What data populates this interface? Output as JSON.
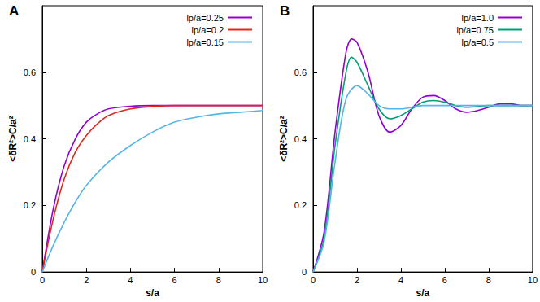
{
  "chart_data": [
    {
      "type": "line",
      "title": "A",
      "xlabel": "s/a",
      "ylabel": "<δR²>C/a²",
      "xlim": [
        0,
        10
      ],
      "xticks": [
        0,
        2,
        4,
        6,
        8,
        10
      ],
      "ylim": [
        0,
        0.8
      ],
      "yticks": [
        0,
        0.2,
        0.4,
        0.6
      ],
      "legend": "upper right",
      "grid": false,
      "series": [
        {
          "name": "lp/a=0.25",
          "color": "#9400d3",
          "x": [
            0,
            0.5,
            1,
            1.5,
            2,
            2.5,
            3,
            4,
            5,
            6,
            7,
            8,
            9,
            10
          ],
          "values": [
            0,
            0.19,
            0.32,
            0.4,
            0.45,
            0.475,
            0.49,
            0.498,
            0.5,
            0.5,
            0.5,
            0.5,
            0.5,
            0.5
          ]
        },
        {
          "name": "lp/a=0.2",
          "color": "#e3261b",
          "x": [
            0,
            0.5,
            1,
            1.5,
            2,
            2.5,
            3,
            4,
            5,
            6,
            7,
            8,
            9,
            10
          ],
          "values": [
            0,
            0.16,
            0.28,
            0.36,
            0.41,
            0.445,
            0.47,
            0.49,
            0.497,
            0.5,
            0.5,
            0.5,
            0.5,
            0.5
          ]
        },
        {
          "name": "lp/a=0.15",
          "color": "#56b4e9",
          "x": [
            0,
            0.5,
            1,
            1.5,
            2,
            3,
            4,
            5,
            6,
            7,
            8,
            9,
            10
          ],
          "values": [
            0,
            0.08,
            0.15,
            0.21,
            0.26,
            0.33,
            0.38,
            0.42,
            0.45,
            0.465,
            0.475,
            0.48,
            0.485
          ]
        }
      ]
    },
    {
      "type": "line",
      "title": "B",
      "xlabel": "s/a",
      "ylabel": "<δR²>C/a²",
      "xlim": [
        0,
        10
      ],
      "xticks": [
        0,
        2,
        4,
        6,
        8,
        10
      ],
      "ylim": [
        0,
        0.8
      ],
      "yticks": [
        0,
        0.2,
        0.4,
        0.6
      ],
      "legend": "upper right",
      "grid": false,
      "series": [
        {
          "name": "lp/a=1.0",
          "color": "#9400d3",
          "x": [
            0,
            0.5,
            1,
            1.5,
            1.75,
            2,
            2.5,
            3,
            3.5,
            4,
            4.5,
            5,
            5.5,
            6,
            6.5,
            7,
            7.5,
            8,
            8.5,
            9,
            9.5,
            10
          ],
          "values": [
            0,
            0.12,
            0.42,
            0.66,
            0.7,
            0.69,
            0.6,
            0.47,
            0.42,
            0.44,
            0.49,
            0.525,
            0.53,
            0.515,
            0.49,
            0.48,
            0.485,
            0.495,
            0.505,
            0.505,
            0.5,
            0.5
          ]
        },
        {
          "name": "lp/a=0.75",
          "color": "#009e73",
          "x": [
            0,
            0.5,
            1,
            1.5,
            1.75,
            2,
            2.5,
            3,
            3.5,
            4,
            4.5,
            5,
            5.5,
            6,
            6.5,
            7,
            8,
            9,
            10
          ],
          "values": [
            0,
            0.1,
            0.38,
            0.6,
            0.645,
            0.63,
            0.56,
            0.49,
            0.46,
            0.47,
            0.49,
            0.51,
            0.515,
            0.51,
            0.5,
            0.495,
            0.5,
            0.5,
            0.5
          ]
        },
        {
          "name": "lp/a=0.5",
          "color": "#56b4e9",
          "x": [
            0,
            0.5,
            1,
            1.5,
            2,
            2.5,
            3,
            3.5,
            4,
            5,
            6,
            7,
            8,
            9,
            10
          ],
          "values": [
            0,
            0.09,
            0.33,
            0.52,
            0.56,
            0.535,
            0.5,
            0.49,
            0.49,
            0.5,
            0.5,
            0.5,
            0.5,
            0.5,
            0.5
          ]
        }
      ]
    }
  ]
}
